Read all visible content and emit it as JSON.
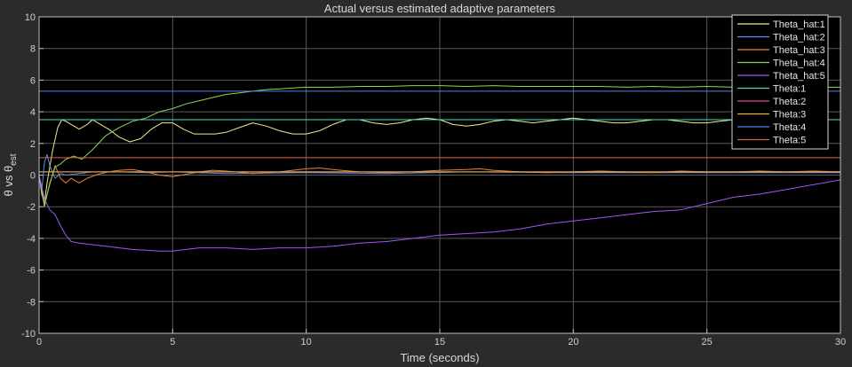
{
  "chart_data": {
    "type": "line",
    "title": "Actual versus estimated adaptive parameters",
    "xlabel": "Time (seconds)",
    "ylabel": {
      "prefix": "θ vs θ",
      "sub": "est"
    },
    "xlim": [
      0,
      30
    ],
    "ylim": [
      -10,
      10
    ],
    "xticks": [
      0,
      5,
      10,
      15,
      20,
      25,
      30
    ],
    "yticks": [
      -10,
      -8,
      -6,
      -4,
      -2,
      0,
      2,
      4,
      6,
      8,
      10
    ],
    "grid": true,
    "legend_position": "top-right",
    "colors": {
      "background": "#000000",
      "figure": "#2b2b2b",
      "grid": "#5a5a5a",
      "axis_frame": "#bfbfbf"
    },
    "series": [
      {
        "name": "Theta_hat:1",
        "color": "#e8f08a",
        "x": [
          0,
          0.1,
          0.2,
          0.3,
          0.5,
          0.7,
          0.85,
          1.0,
          1.2,
          1.5,
          1.8,
          2.0,
          2.3,
          2.6,
          3.0,
          3.4,
          3.8,
          4.2,
          4.6,
          5.0,
          5.4,
          5.8,
          6.2,
          6.6,
          7.0,
          7.5,
          8.0,
          8.5,
          9.0,
          9.5,
          10.0,
          10.5,
          11.0,
          11.5,
          12.0,
          12.5,
          13.0,
          13.5,
          14.0,
          14.5,
          15.0,
          15.5,
          16.0,
          16.5,
          17.0,
          17.5,
          18.0,
          18.5,
          19.0,
          19.5,
          20.0,
          20.5,
          21.0,
          21.5,
          22.0,
          22.5,
          23.0,
          23.5,
          24.0,
          24.5,
          25.0,
          25.5,
          26.0,
          26.5,
          27.0,
          27.5,
          28.0,
          28.5,
          29.0,
          29.5,
          30.0
        ],
        "y": [
          0,
          -1.2,
          -1.8,
          -0.5,
          1.5,
          3.0,
          3.5,
          3.4,
          3.2,
          2.9,
          3.2,
          3.5,
          3.2,
          2.9,
          2.4,
          2.1,
          2.3,
          2.9,
          3.3,
          3.3,
          2.9,
          2.6,
          2.6,
          2.6,
          2.7,
          3.0,
          3.3,
          3.1,
          2.8,
          2.6,
          2.6,
          2.8,
          3.2,
          3.5,
          3.5,
          3.3,
          3.2,
          3.3,
          3.5,
          3.6,
          3.5,
          3.2,
          3.1,
          3.2,
          3.4,
          3.5,
          3.4,
          3.3,
          3.4,
          3.5,
          3.6,
          3.5,
          3.4,
          3.3,
          3.3,
          3.4,
          3.5,
          3.5,
          3.4,
          3.3,
          3.3,
          3.4,
          3.5,
          3.5,
          3.4,
          3.5,
          3.6,
          3.5,
          3.4,
          3.5,
          3.5
        ]
      },
      {
        "name": "Theta_hat:2",
        "color": "#5b8ff0",
        "x": [
          0,
          0.1,
          0.2,
          0.3,
          0.4,
          0.6,
          0.8,
          1.0,
          1.5,
          2.0,
          3.0,
          4.0,
          5.0,
          7.0,
          10.0,
          13.0,
          16.0,
          20.0,
          25.0,
          30.0
        ],
        "y": [
          0,
          -1.0,
          0.8,
          1.3,
          0.6,
          -0.2,
          0.1,
          0.0,
          0.1,
          0.2,
          0.2,
          0.15,
          0.2,
          0.1,
          0.15,
          0.1,
          0.2,
          0.15,
          0.15,
          0.15
        ]
      },
      {
        "name": "Theta_hat:3",
        "color": "#e8823a",
        "x": [
          0,
          0.2,
          0.4,
          0.6,
          0.8,
          1.0,
          1.2,
          1.5,
          1.8,
          2.2,
          2.6,
          3.0,
          3.5,
          4.0,
          4.5,
          5.0,
          5.5,
          6.0,
          6.5,
          7.0,
          8.0,
          9.0,
          10.0,
          10.5,
          11.0,
          12.0,
          13.0,
          14.0,
          15.0,
          16.0,
          16.5,
          17.0,
          18.0,
          19.0,
          20.0,
          21.0,
          22.0,
          23.0,
          24.0,
          25.0,
          26.0,
          27.0,
          28.0,
          29.0,
          30.0
        ],
        "y": [
          0,
          -1.8,
          -0.6,
          0.6,
          -0.2,
          -0.5,
          -0.2,
          -0.5,
          -0.2,
          0.05,
          0.2,
          0.3,
          0.35,
          0.2,
          0.0,
          -0.1,
          0.05,
          0.2,
          0.3,
          0.25,
          0.1,
          0.2,
          0.4,
          0.45,
          0.35,
          0.2,
          0.15,
          0.2,
          0.3,
          0.35,
          0.4,
          0.3,
          0.2,
          0.15,
          0.2,
          0.25,
          0.2,
          0.15,
          0.25,
          0.2,
          0.2,
          0.25,
          0.2,
          0.25,
          0.2
        ]
      },
      {
        "name": "Theta_hat:4",
        "color": "#8cd65a",
        "x": [
          0,
          0.2,
          0.4,
          0.6,
          0.8,
          1.0,
          1.3,
          1.6,
          2.0,
          2.5,
          3.0,
          3.5,
          4.0,
          4.5,
          5.0,
          5.5,
          6.0,
          6.5,
          7.0,
          7.5,
          8.0,
          8.5,
          9.0,
          9.5,
          10.0,
          11.0,
          12.0,
          13.0,
          14.0,
          15.0,
          16.0,
          17.0,
          18.0,
          19.0,
          20.0,
          21.0,
          22.0,
          23.0,
          24.0,
          25.0,
          26.0,
          27.0,
          28.0,
          29.0,
          30.0
        ],
        "y": [
          0,
          -2.0,
          -0.5,
          0.5,
          0.7,
          1.0,
          1.2,
          1.0,
          1.6,
          2.5,
          3.0,
          3.4,
          3.6,
          4.0,
          4.2,
          4.5,
          4.7,
          4.9,
          5.1,
          5.2,
          5.3,
          5.4,
          5.45,
          5.5,
          5.55,
          5.55,
          5.6,
          5.6,
          5.65,
          5.65,
          5.6,
          5.65,
          5.6,
          5.6,
          5.6,
          5.6,
          5.55,
          5.6,
          5.55,
          5.6,
          5.55,
          5.55,
          5.55,
          5.55,
          5.55
        ]
      },
      {
        "name": "Theta_hat:5",
        "color": "#a058f0",
        "x": [
          0,
          0.2,
          0.4,
          0.6,
          0.8,
          1.0,
          1.2,
          1.5,
          2.0,
          2.5,
          3.0,
          3.5,
          4.0,
          4.5,
          5.0,
          5.5,
          6.0,
          7.0,
          8.0,
          9.0,
          10.0,
          11.0,
          12.0,
          13.0,
          14.0,
          15.0,
          16.0,
          17.0,
          18.0,
          19.0,
          20.0,
          21.0,
          22.0,
          23.0,
          24.0,
          25.0,
          26.0,
          27.0,
          28.0,
          29.0,
          30.0
        ],
        "y": [
          0,
          -1.5,
          -2.2,
          -2.5,
          -3.2,
          -3.8,
          -4.2,
          -4.3,
          -4.4,
          -4.5,
          -4.6,
          -4.7,
          -4.75,
          -4.8,
          -4.8,
          -4.7,
          -4.6,
          -4.6,
          -4.7,
          -4.6,
          -4.6,
          -4.5,
          -4.3,
          -4.2,
          -4.0,
          -3.8,
          -3.7,
          -3.6,
          -3.4,
          -3.1,
          -2.9,
          -2.7,
          -2.5,
          -2.3,
          -2.2,
          -1.8,
          -1.4,
          -1.2,
          -0.9,
          -0.6,
          -0.3
        ]
      },
      {
        "name": "Theta:1",
        "color": "#4fd6c0",
        "x": [
          0,
          30
        ],
        "y": [
          3.5,
          3.5
        ]
      },
      {
        "name": "Theta:2",
        "color": "#e05090",
        "x": [
          0,
          30
        ],
        "y": [
          0.2,
          0.2
        ]
      },
      {
        "name": "Theta:3",
        "color": "#e0b040",
        "x": [
          0,
          30
        ],
        "y": [
          0.2,
          0.2
        ]
      },
      {
        "name": "Theta:4",
        "color": "#4f7ff0",
        "x": [
          0,
          30
        ],
        "y": [
          5.3,
          5.3
        ]
      },
      {
        "name": "Theta:5",
        "color": "#e06040",
        "x": [
          0,
          30
        ],
        "y": [
          1.1,
          1.1
        ]
      }
    ]
  }
}
